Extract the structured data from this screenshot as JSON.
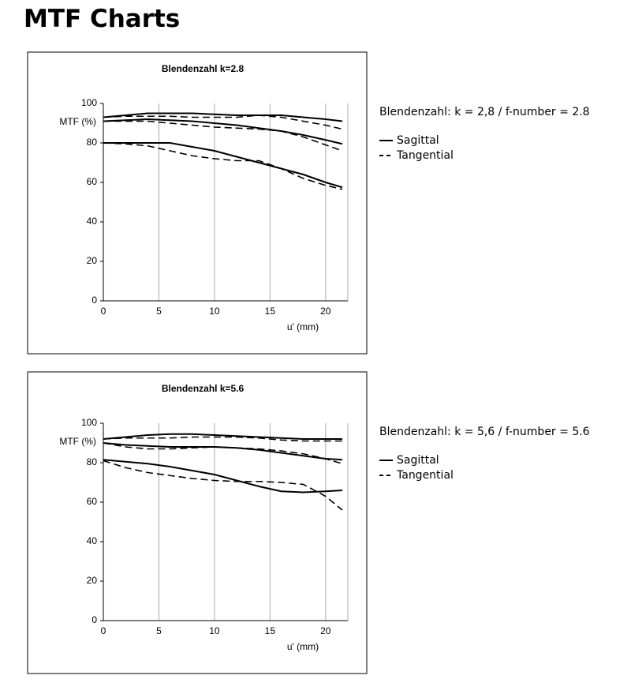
{
  "header": {
    "title": "MTF Charts"
  },
  "chart_data": [
    {
      "type": "line",
      "title": "Blendenzahl k=2.8",
      "ylabel": "MTF (%)",
      "xlabel": "u' (mm)",
      "note": "Blendenzahl: k = 2,8 / f-number = 2.8",
      "color": "#000000",
      "x": [
        0,
        2,
        4,
        6,
        8,
        10,
        12,
        14,
        16,
        18,
        20,
        21.5
      ],
      "xlim": [
        0,
        22
      ],
      "ylim": [
        0,
        100
      ],
      "xticks": [
        0,
        5,
        10,
        15,
        20
      ],
      "yticks": [
        0,
        20,
        40,
        60,
        80,
        100
      ],
      "grid": true,
      "series": [
        {
          "name": "Sagittal",
          "dashed": false,
          "curves": [
            [
              93,
              94,
              95,
              95,
              95,
              94.5,
              94,
              94,
              94,
              93,
              92,
              91
            ],
            [
              91,
              91.5,
              92,
              91.5,
              91,
              90,
              89,
              87.5,
              86,
              84,
              81.5,
              79.5
            ],
            [
              80,
              80,
              80,
              80,
              78,
              76,
              73,
              70,
              67,
              64,
              60,
              57.5
            ]
          ]
        },
        {
          "name": "Tangential",
          "dashed": true,
          "curves": [
            [
              93,
              93.5,
              93.5,
              93.5,
              93,
              93,
              93,
              94,
              93,
              91,
              89,
              87
            ],
            [
              91,
              91,
              91,
              90,
              89,
              88,
              87.5,
              87,
              86,
              83,
              79,
              76
            ],
            [
              80,
              79.5,
              78.5,
              76,
              73.5,
              72,
              71,
              71,
              67,
              62,
              58.5,
              56.5
            ]
          ]
        }
      ]
    },
    {
      "type": "line",
      "title": "Blendenzahl k=5.6",
      "ylabel": "MTF (%)",
      "xlabel": "u' (mm)",
      "note": "Blendenzahl: k = 5,6 / f-number = 5.6",
      "color": "#000000",
      "x": [
        0,
        2,
        4,
        6,
        8,
        10,
        12,
        14,
        16,
        18,
        20,
        21.5
      ],
      "xlim": [
        0,
        22
      ],
      "ylim": [
        0,
        100
      ],
      "xticks": [
        0,
        5,
        10,
        15,
        20
      ],
      "yticks": [
        0,
        20,
        40,
        60,
        80,
        100
      ],
      "grid": true,
      "series": [
        {
          "name": "Sagittal",
          "dashed": false,
          "curves": [
            [
              92,
              93,
              94,
              94.5,
              94.5,
              94,
              93.5,
              93,
              92.5,
              92,
              92,
              92
            ],
            [
              90,
              89,
              88.5,
              88,
              88,
              88,
              87.5,
              86.5,
              85,
              83.5,
              82,
              81.5
            ],
            [
              81.5,
              80.5,
              79.5,
              78,
              76,
              74,
              71,
              68,
              65.5,
              65,
              65.5,
              66
            ]
          ]
        },
        {
          "name": "Tangential",
          "dashed": true,
          "curves": [
            [
              92,
              92.5,
              92.5,
              92.5,
              93,
              93,
              93,
              92.5,
              91.5,
              91,
              91,
              91
            ],
            [
              90,
              88,
              87,
              87,
              87.5,
              88,
              87.5,
              87,
              86,
              84.5,
              82,
              79.5
            ],
            [
              81,
              77.5,
              75,
              73.5,
              72,
              71,
              70.5,
              70.5,
              70,
              69,
              63,
              56
            ]
          ]
        }
      ]
    }
  ]
}
